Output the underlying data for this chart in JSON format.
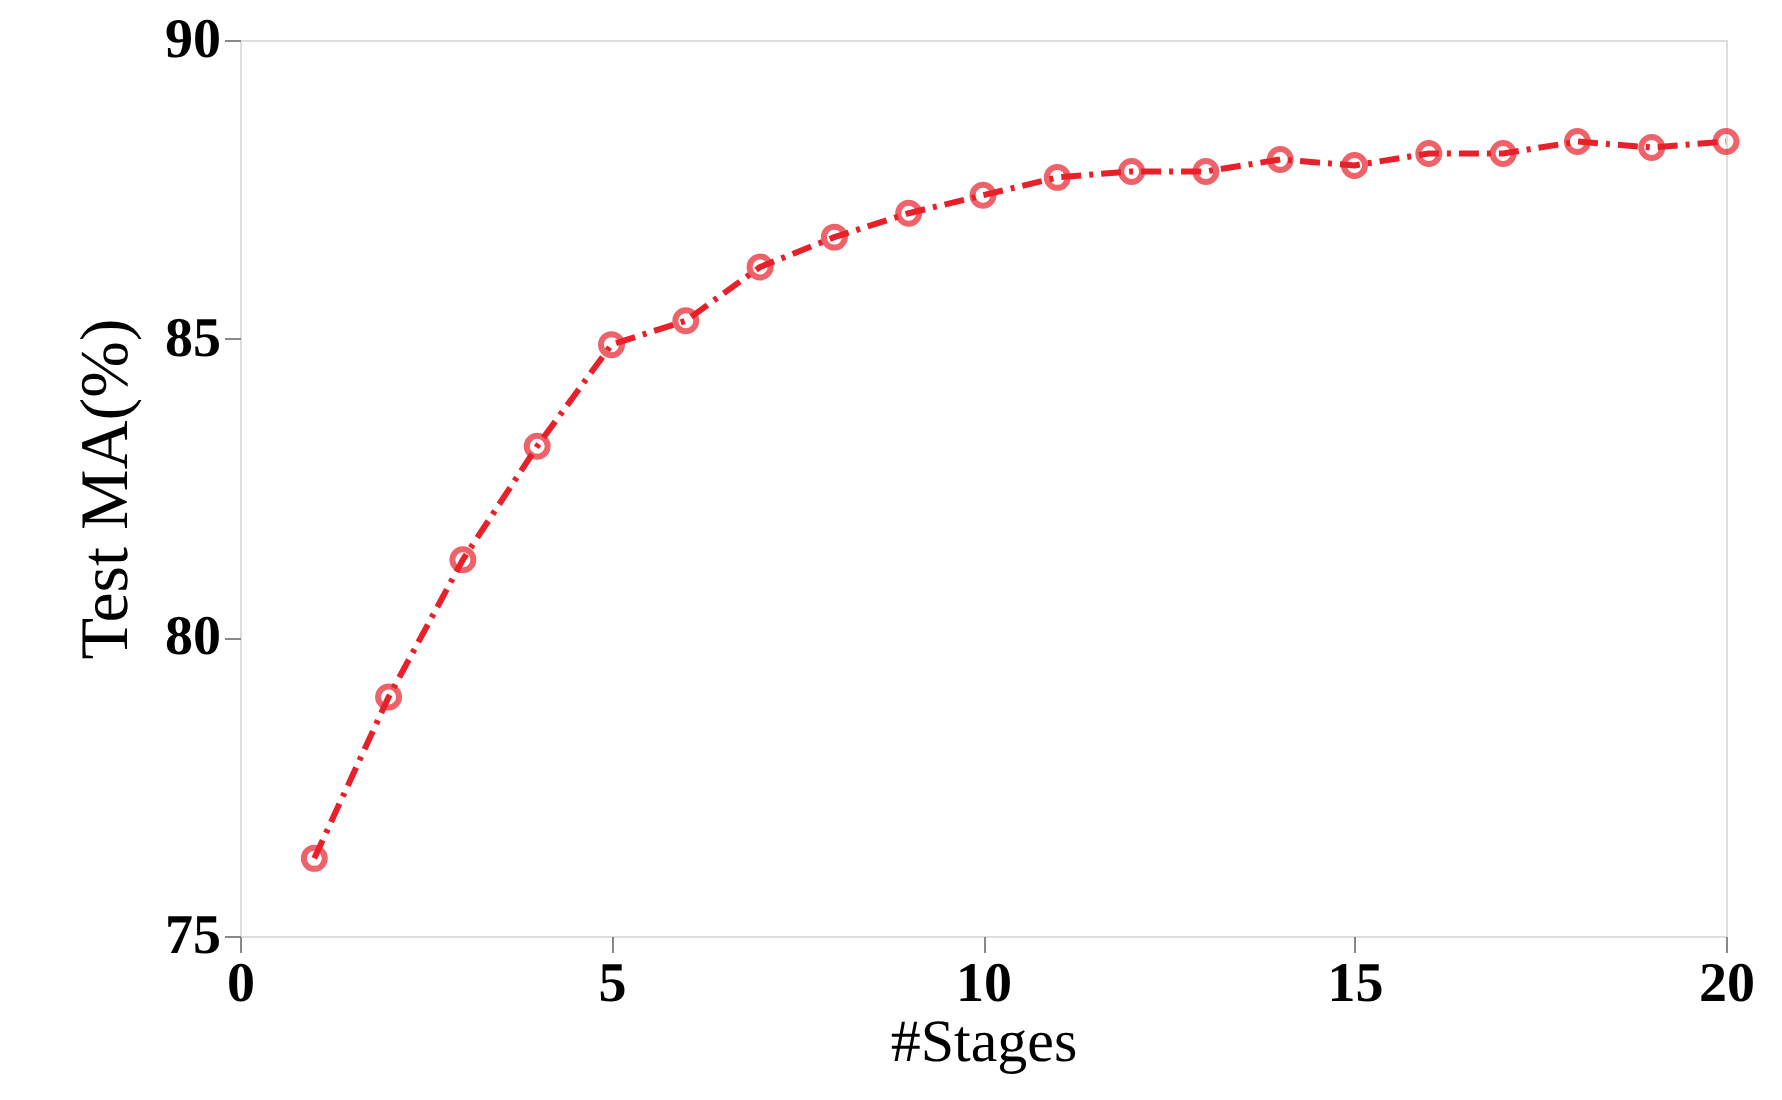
{
  "chart_data": {
    "type": "line",
    "xlabel": "#Stages",
    "ylabel": "Test MA(%)",
    "x": [
      1,
      2,
      3,
      4,
      5,
      6,
      7,
      8,
      9,
      10,
      11,
      12,
      13,
      14,
      15,
      16,
      17,
      18,
      19,
      20
    ],
    "series": [
      {
        "color": "#e8202a",
        "values": [
          76.3,
          79.0,
          81.3,
          83.2,
          84.9,
          85.3,
          86.2,
          86.7,
          87.1,
          87.4,
          87.7,
          87.8,
          87.8,
          88.0,
          87.9,
          88.1,
          88.1,
          88.3,
          88.2,
          88.3
        ]
      }
    ],
    "xlim": [
      0,
      20
    ],
    "xticks": [
      0,
      5,
      10,
      15,
      20
    ],
    "ylim": [
      75,
      90
    ],
    "yticks": [
      75,
      80,
      85,
      90
    ],
    "grid": false,
    "legend": false,
    "marker": "circle",
    "line_style": "dashed"
  }
}
